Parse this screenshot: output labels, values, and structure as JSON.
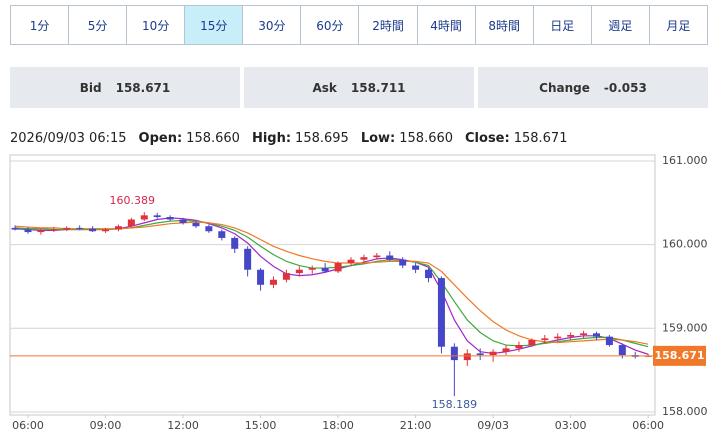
{
  "tabs": [
    "1分",
    "5分",
    "10分",
    "15分",
    "30分",
    "60分",
    "2時間",
    "4時間",
    "8時間",
    "日足",
    "週足",
    "月足"
  ],
  "active_tab": "15分",
  "quote": [
    {
      "label": "Bid",
      "value": "158.671"
    },
    {
      "label": "Ask",
      "value": "158.711"
    },
    {
      "label": "Change",
      "value": "-0.053"
    }
  ],
  "info": {
    "datetime": "2026/09/03 06:15",
    "items": [
      {
        "label": "Open:",
        "value": "158.660"
      },
      {
        "label": "High:",
        "value": "158.695"
      },
      {
        "label": "Low:",
        "value": "158.660"
      },
      {
        "label": "Close:",
        "value": "158.671"
      }
    ]
  },
  "chart_data": {
    "type": "candlestick",
    "x": [
      "09/02 05:30",
      "09/02 06:00",
      "09/02 06:30",
      "09/02 07:00",
      "09/02 07:30",
      "09/02 08:00",
      "09/02 08:30",
      "09/02 09:00",
      "09/02 09:30",
      "09/02 10:00",
      "09/02 10:30",
      "09/02 11:00",
      "09/02 11:30",
      "09/02 12:00",
      "09/02 12:30",
      "09/02 13:00",
      "09/02 13:30",
      "09/02 14:00",
      "09/02 14:30",
      "09/02 15:00",
      "09/02 15:30",
      "09/02 16:00",
      "09/02 16:30",
      "09/02 17:00",
      "09/02 17:30",
      "09/02 18:00",
      "09/02 18:30",
      "09/02 19:00",
      "09/02 19:30",
      "09/02 20:00",
      "09/02 20:30",
      "09/02 21:00",
      "09/02 21:30",
      "09/02 22:00",
      "09/02 22:30",
      "09/02 23:00",
      "09/02 23:30",
      "09/03 00:00",
      "09/03 00:30",
      "09/03 01:00",
      "09/03 01:30",
      "09/03 02:00",
      "09/03 02:30",
      "09/03 03:00",
      "09/03 03:30",
      "09/03 04:00",
      "09/03 04:30",
      "09/03 05:00",
      "09/03 05:30",
      "09/03 06:00"
    ],
    "open": [
      160.2,
      160.18,
      160.15,
      160.17,
      160.18,
      160.2,
      160.19,
      160.16,
      160.18,
      160.22,
      160.3,
      160.35,
      160.33,
      160.3,
      160.26,
      160.22,
      160.16,
      160.08,
      159.95,
      159.7,
      159.52,
      159.58,
      159.66,
      159.7,
      159.72,
      159.68,
      159.78,
      159.82,
      159.85,
      159.87,
      159.82,
      159.75,
      159.7,
      159.6,
      158.78,
      158.62,
      158.7,
      158.68,
      158.72,
      158.76,
      158.8,
      158.86,
      158.88,
      158.9,
      158.92,
      158.94,
      158.9,
      158.8,
      158.68,
      158.66
    ],
    "high": [
      160.23,
      160.21,
      160.19,
      160.21,
      160.22,
      160.23,
      160.22,
      160.2,
      160.24,
      160.32,
      160.389,
      160.38,
      160.35,
      160.32,
      160.28,
      160.24,
      160.18,
      160.1,
      159.98,
      159.72,
      159.62,
      159.7,
      159.74,
      159.75,
      159.78,
      159.8,
      159.85,
      159.88,
      159.9,
      159.92,
      159.85,
      159.78,
      159.72,
      159.62,
      158.82,
      158.75,
      158.76,
      158.75,
      158.8,
      158.84,
      158.88,
      158.92,
      158.94,
      158.95,
      158.97,
      158.96,
      158.92,
      158.82,
      158.72,
      158.695
    ],
    "low": [
      160.17,
      160.13,
      160.12,
      160.15,
      160.16,
      160.17,
      160.15,
      160.14,
      160.16,
      160.2,
      160.28,
      160.31,
      160.28,
      160.24,
      160.2,
      160.14,
      160.05,
      159.9,
      159.62,
      159.45,
      159.48,
      159.55,
      159.62,
      159.65,
      159.66,
      159.66,
      159.74,
      159.78,
      159.82,
      159.8,
      159.72,
      159.66,
      159.55,
      158.7,
      158.189,
      158.55,
      158.62,
      158.6,
      158.68,
      158.72,
      158.78,
      158.82,
      158.85,
      158.86,
      158.88,
      158.86,
      158.78,
      158.64,
      158.64,
      158.66
    ],
    "close": [
      160.18,
      160.15,
      160.17,
      160.18,
      160.2,
      160.19,
      160.16,
      160.18,
      160.22,
      160.3,
      160.35,
      160.33,
      160.3,
      160.26,
      160.22,
      160.16,
      160.08,
      159.95,
      159.7,
      159.52,
      159.58,
      159.66,
      159.7,
      159.72,
      159.68,
      159.78,
      159.82,
      159.85,
      159.87,
      159.82,
      159.75,
      159.7,
      159.6,
      158.78,
      158.62,
      158.7,
      158.68,
      158.72,
      158.76,
      158.8,
      158.86,
      158.88,
      158.9,
      158.92,
      158.94,
      158.9,
      158.8,
      158.68,
      158.66,
      158.671
    ],
    "up_color": "#e0323c",
    "down_color": "#4646c8",
    "lines": [
      {
        "color": "#a028c8",
        "values": [
          160.19,
          160.18,
          160.17,
          160.17,
          160.18,
          160.18,
          160.18,
          160.18,
          160.19,
          160.22,
          160.26,
          160.3,
          160.32,
          160.31,
          160.29,
          160.25,
          160.2,
          160.13,
          160.02,
          159.86,
          159.74,
          159.65,
          159.63,
          159.64,
          159.67,
          159.71,
          159.75,
          159.79,
          159.83,
          159.84,
          159.82,
          159.79,
          159.73,
          159.45,
          159.1,
          158.85,
          158.72,
          158.7,
          158.72,
          158.75,
          158.79,
          158.83,
          158.86,
          158.89,
          158.91,
          158.91,
          158.88,
          158.81,
          158.74,
          158.69
        ]
      },
      {
        "color": "#3caa3c",
        "values": [
          160.2,
          160.19,
          160.19,
          160.18,
          160.18,
          160.18,
          160.18,
          160.18,
          160.19,
          160.2,
          160.23,
          160.26,
          160.28,
          160.29,
          160.28,
          160.26,
          160.22,
          160.17,
          160.09,
          159.98,
          159.88,
          159.8,
          159.75,
          159.72,
          159.72,
          159.73,
          159.75,
          159.77,
          159.8,
          159.82,
          159.81,
          159.79,
          159.75,
          159.55,
          159.32,
          159.1,
          158.95,
          158.85,
          158.8,
          158.79,
          158.8,
          158.82,
          158.84,
          158.86,
          158.88,
          158.89,
          158.89,
          158.86,
          158.82,
          158.78
        ]
      },
      {
        "color": "#f07828",
        "values": [
          160.22,
          160.21,
          160.2,
          160.2,
          160.19,
          160.19,
          160.19,
          160.19,
          160.19,
          160.2,
          160.21,
          160.23,
          160.25,
          160.26,
          160.27,
          160.26,
          160.24,
          160.2,
          160.14,
          160.06,
          159.98,
          159.92,
          159.87,
          159.83,
          159.8,
          159.78,
          159.78,
          159.78,
          159.79,
          159.8,
          159.8,
          159.8,
          159.78,
          159.68,
          159.52,
          159.36,
          159.21,
          159.08,
          158.98,
          158.91,
          158.86,
          158.84,
          158.83,
          158.84,
          158.85,
          158.86,
          158.87,
          158.86,
          158.84,
          158.81
        ]
      }
    ],
    "price_color": "#f07828",
    "ylim": [
      157.964,
      161.071
    ],
    "yticks": [
      {
        "value": 158,
        "label": "158.000"
      },
      {
        "value": 159,
        "label": "159.000"
      },
      {
        "value": 160,
        "label": "160.000"
      },
      {
        "value": 161,
        "label": "161.000"
      }
    ],
    "xticks": [
      {
        "value": "09/02 06:00",
        "label": "06:00"
      },
      {
        "value": "09/02 09:00",
        "label": "09:00"
      },
      {
        "value": "09/02 12:00",
        "label": "12:00"
      },
      {
        "value": "09/02 15:00",
        "label": "15:00"
      },
      {
        "value": "09/02 18:00",
        "label": "18:00"
      },
      {
        "value": "09/02 21:00",
        "label": "21:00"
      },
      {
        "value": "09/03 00:00",
        "label": "09/03"
      },
      {
        "value": "09/03 03:00",
        "label": "03:00"
      },
      {
        "value": "09/03 06:00",
        "label": "06:00"
      }
    ],
    "grid": true
  }
}
